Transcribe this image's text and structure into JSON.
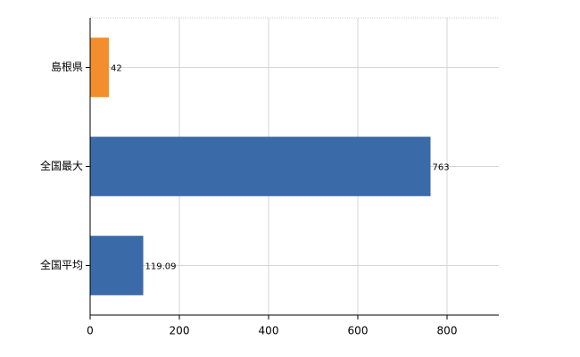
{
  "chart_data": {
    "type": "hbar",
    "categories": [
      "島根県",
      "全国最大",
      "全国平均"
    ],
    "values": [
      42,
      763,
      119.09
    ],
    "colors": [
      "#f28e2b",
      "#3b6aa8",
      "#3b6aa8"
    ],
    "xlim": [
      0,
      916
    ],
    "xticks": [
      0,
      200,
      400,
      600,
      800
    ],
    "grid": true
  }
}
